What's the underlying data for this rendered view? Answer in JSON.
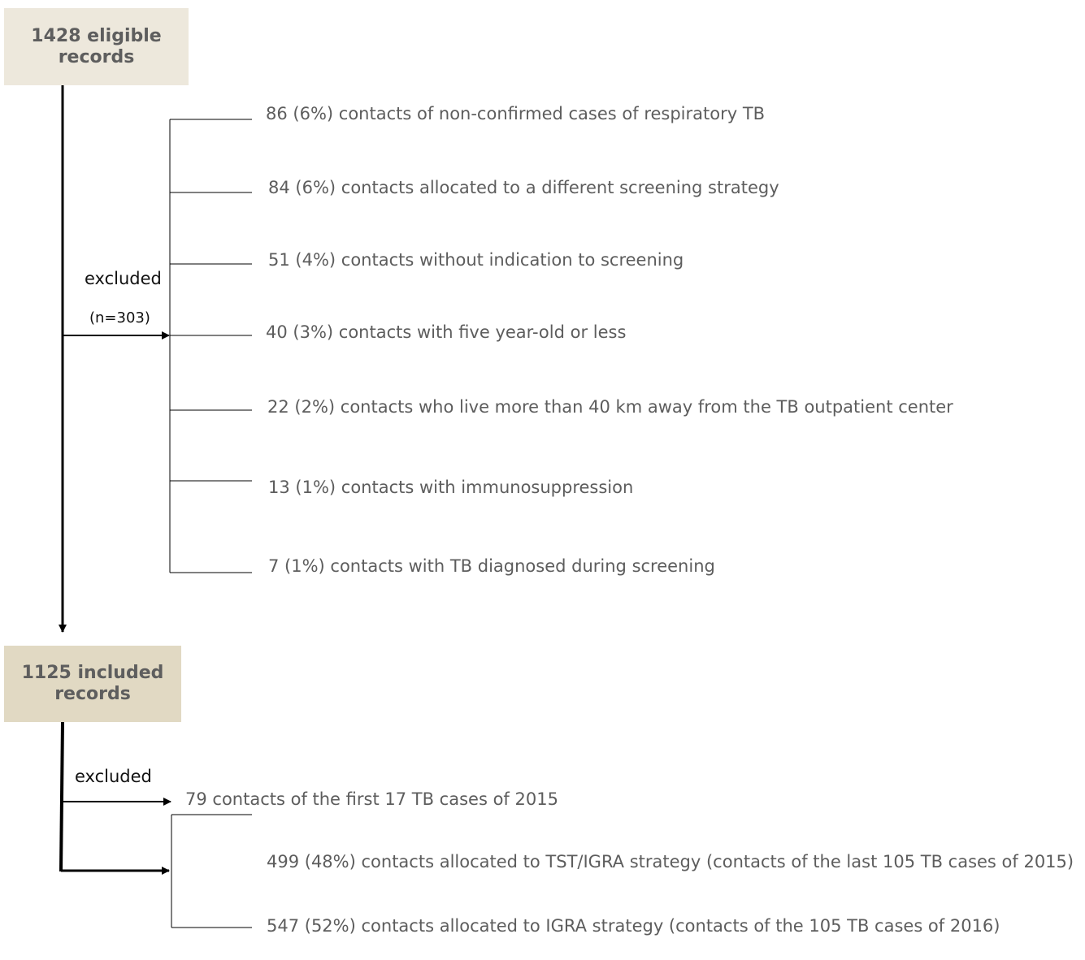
{
  "nodes": {
    "eligible": {
      "line1": "1428 eligible",
      "line2": "records"
    },
    "included": {
      "line1": "1125 included",
      "line2": "records"
    }
  },
  "first_exclusion": {
    "label": "excluded",
    "count": "(n=303)",
    "items": [
      "86 (6%) contacts of non-confirmed cases of respiratory TB",
      "84 (6%) contacts allocated to a different screening strategy",
      "51 (4%) contacts without indication to screening",
      "40 (3%) contacts with five year-old or less",
      "22 (2%) contacts who live more than 40 km away from the TB outpatient center",
      "13 (1%) contacts with immunosuppression",
      "7 (1%) contacts with TB diagnosed during screening"
    ]
  },
  "second_exclusion": {
    "label": "excluded",
    "item": "79 contacts of the first 17 TB cases of 2015"
  },
  "allocation": {
    "items": [
      "499 (48%) contacts allocated to TST/IGRA strategy (contacts of the last 105 TB cases of 2015)",
      "547 (52%) contacts allocated to IGRA strategy (contacts of the 105 TB cases of 2016)"
    ]
  },
  "colors": {
    "box_fill_top": "#ede8dc",
    "box_fill_mid": "#e1d9c3",
    "box_text": "#5e5e5e",
    "label_text": "#5d5d5d",
    "line": "#000000"
  }
}
